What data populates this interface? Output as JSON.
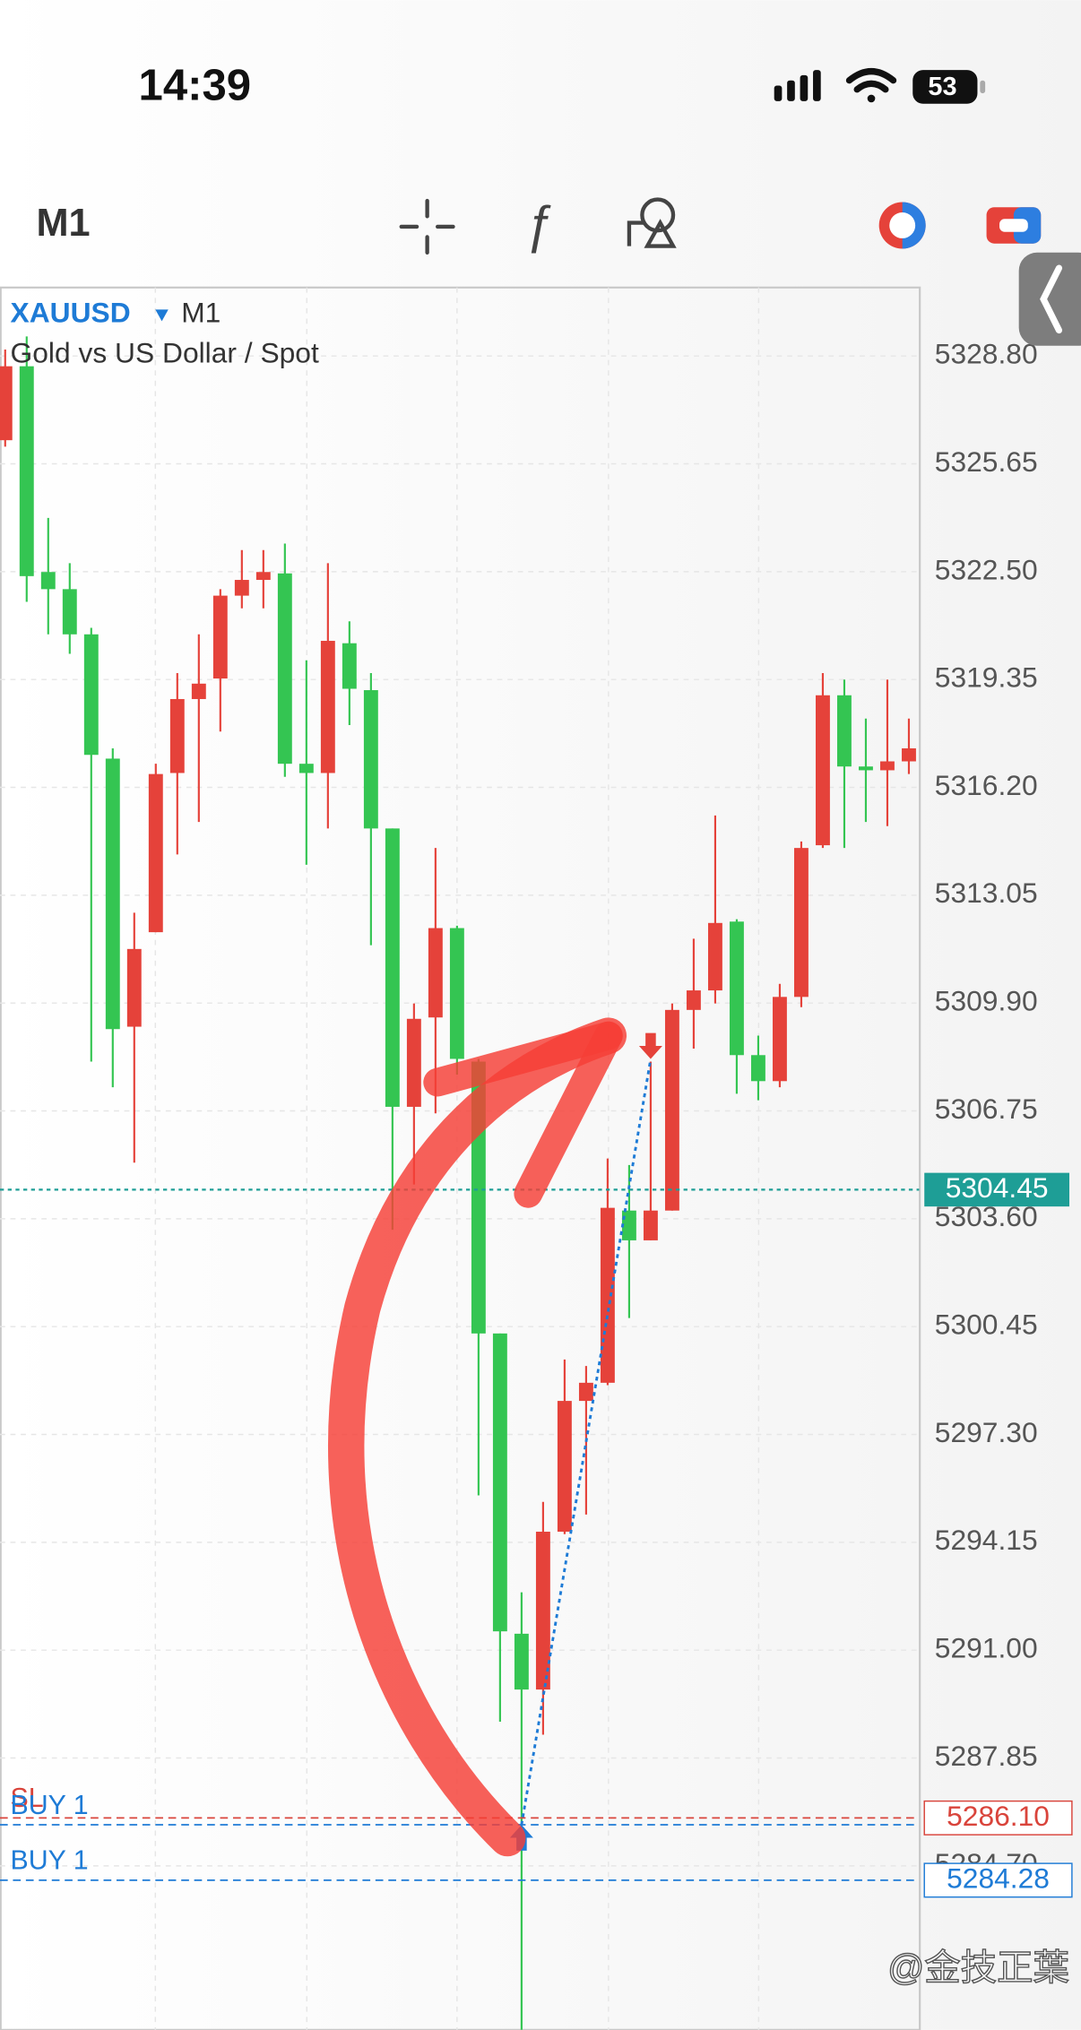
{
  "status_bar": {
    "time": "14:39",
    "battery": "53"
  },
  "toolbar": {
    "timeframe": "M1"
  },
  "chart_data": {
    "type": "candlestick",
    "symbol": "XAUUSD",
    "timeframe": "M1",
    "description": "Gold vs US Dollar / Spot",
    "open": [
      5326.34,
      5328.5,
      5322.49,
      5321.99,
      5320.67,
      5317.04,
      5309.21,
      5311.97,
      5316.62,
      5318.78,
      5319.38,
      5321.8,
      5322.26,
      5322.45,
      5316.89,
      5316.62,
      5320.41,
      5319.04,
      5315.0,
      5306.87,
      5309.48,
      5312.09,
      5308.19,
      5300.25,
      5291.48,
      5289.85,
      5294.46,
      5298.28,
      5298.81,
      5303.84,
      5302.97,
      5303.84,
      5309.7,
      5310.27,
      5312.28,
      5308.38,
      5307.62,
      5310.08,
      5314.51,
      5318.89,
      5316.81,
      5316.7,
      5316.96
    ],
    "high": [
      5328.99,
      5329.37,
      5324.07,
      5322.75,
      5320.86,
      5317.34,
      5312.54,
      5316.89,
      5319.54,
      5320.67,
      5321.99,
      5323.13,
      5323.13,
      5323.32,
      5319.91,
      5322.75,
      5321.05,
      5319.54,
      5315.0,
      5309.89,
      5314.43,
      5312.16,
      5308.27,
      5300.25,
      5292.69,
      5295.33,
      5299.49,
      5299.3,
      5305.36,
      5305.17,
      5308.19,
      5309.89,
      5311.78,
      5315.38,
      5312.35,
      5308.95,
      5310.46,
      5314.62,
      5319.54,
      5319.35,
      5318.21,
      5319.35,
      5318.21
    ],
    "low": [
      5326.15,
      5321.62,
      5320.67,
      5320.1,
      5308.19,
      5307.44,
      5305.24,
      5311.97,
      5314.24,
      5315.19,
      5317.83,
      5321.43,
      5321.43,
      5316.51,
      5313.94,
      5315.0,
      5318.02,
      5311.59,
      5303.28,
      5304.6,
      5306.68,
      5307.81,
      5295.52,
      5288.91,
      5279.91,
      5288.53,
      5294.39,
      5294.96,
      5298.74,
      5300.7,
      5302.97,
      5303.84,
      5308.57,
      5309.89,
      5307.25,
      5307.06,
      5307.44,
      5309.78,
      5314.43,
      5314.43,
      5315.19,
      5315.07,
      5316.59
    ],
    "close": [
      5328.5,
      5322.37,
      5321.99,
      5320.67,
      5317.15,
      5309.14,
      5311.48,
      5316.59,
      5318.78,
      5319.23,
      5321.8,
      5322.26,
      5322.49,
      5316.89,
      5316.62,
      5320.48,
      5319.08,
      5315.0,
      5306.87,
      5309.44,
      5312.09,
      5308.27,
      5300.25,
      5291.55,
      5289.85,
      5294.46,
      5298.28,
      5298.81,
      5303.92,
      5302.97,
      5303.84,
      5309.7,
      5310.27,
      5312.24,
      5308.38,
      5307.62,
      5310.08,
      5314.43,
      5318.89,
      5316.81,
      5316.7,
      5316.96,
      5317.34
    ],
    "up_color": "#e5423a",
    "down_color": "#34c552",
    "ylim": [
      5279.91,
      5330.8
    ],
    "yticks": [
      {
        "value": 5328.8,
        "label": "5328.80"
      },
      5325.65,
      {
        "value": 5322.5,
        "label": "5322.50"
      },
      5319.35,
      {
        "value": 5316.2,
        "label": "5316.20"
      },
      5313.05,
      {
        "value": 5309.9,
        "label": "5309.90"
      },
      5306.75,
      {
        "value": 5303.6,
        "label": "5303.60"
      },
      5300.45,
      {
        "value": 5297.3,
        "label": "5297.30"
      },
      5294.15,
      {
        "value": 5291,
        "label": "5291.00"
      },
      5287.85,
      {
        "value": 5284.7,
        "label": "5284.70"
      }
    ],
    "grid": true,
    "current_price": 5304.45,
    "current_price_color": "#1e9e96",
    "levels": [
      {
        "name": "SL",
        "value": {
          "value": 5286.1,
          "label": "5286.10"
        },
        "color": "#d9443b",
        "tag": true
      },
      {
        "name": "BUY 1",
        "value": 5285.9,
        "color": "#1e7bd6",
        "tag": false
      },
      {
        "name": "BUY 1",
        "value": 5284.28,
        "color": "#1e7bd6",
        "tag": true
      }
    ],
    "trade": {
      "entry_index": 24,
      "entry": 5285.9,
      "exit_index": 30,
      "exit": 5308.27,
      "color": "#1e7bd6"
    }
  },
  "watermark": "@金技正葉"
}
